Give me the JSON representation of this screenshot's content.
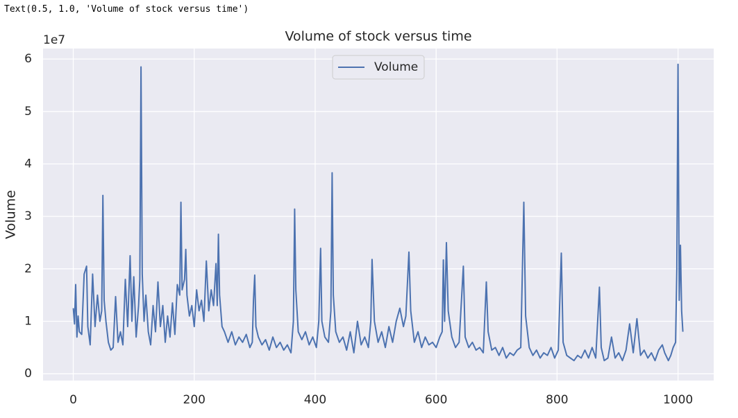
{
  "output_text": "Text(0.5, 1.0, 'Volume of stock versus time')",
  "chart_data": {
    "type": "line",
    "title": "Volume of stock versus time",
    "ylabel": "Volume",
    "y_offset_label": "1e7",
    "xlim": [
      -50,
      1059
    ],
    "ylim": [
      -0.13,
      6.2
    ],
    "xticks": [
      0,
      200,
      400,
      600,
      800,
      1000
    ],
    "yticks": [
      0,
      1,
      2,
      3,
      4,
      5,
      6
    ],
    "grid": true,
    "legend": "upper center",
    "x": [
      0,
      2,
      4,
      6,
      8,
      10,
      14,
      18,
      22,
      24,
      28,
      32,
      36,
      40,
      44,
      47,
      49,
      51,
      54,
      58,
      62,
      66,
      70,
      74,
      78,
      82,
      86,
      90,
      94,
      97,
      100,
      104,
      108,
      110,
      112,
      114,
      117,
      120,
      124,
      128,
      132,
      136,
      140,
      144,
      148,
      152,
      156,
      160,
      164,
      168,
      172,
      176,
      178,
      180,
      184,
      186,
      188,
      192,
      196,
      200,
      204,
      208,
      212,
      216,
      220,
      224,
      228,
      232,
      236,
      238,
      240,
      242,
      246,
      250,
      256,
      262,
      268,
      274,
      280,
      286,
      292,
      296,
      298,
      300,
      302,
      306,
      312,
      318,
      324,
      330,
      336,
      342,
      348,
      354,
      360,
      364,
      366,
      368,
      372,
      378,
      384,
      390,
      396,
      402,
      406,
      409,
      411,
      416,
      422,
      426,
      428,
      430,
      434,
      440,
      446,
      452,
      458,
      464,
      470,
      476,
      482,
      488,
      492,
      494,
      498,
      504,
      510,
      516,
      522,
      528,
      534,
      540,
      546,
      550,
      555,
      558,
      564,
      570,
      576,
      582,
      588,
      594,
      600,
      606,
      610,
      612,
      614,
      617,
      620,
      626,
      632,
      638,
      645,
      648,
      654,
      660,
      666,
      672,
      678,
      683,
      686,
      692,
      698,
      704,
      710,
      716,
      722,
      728,
      734,
      740,
      745,
      748,
      754,
      760,
      766,
      772,
      778,
      784,
      790,
      796,
      802,
      807,
      810,
      816,
      822,
      828,
      834,
      840,
      846,
      852,
      858,
      864,
      870,
      873,
      878,
      884,
      890,
      896,
      902,
      908,
      914,
      920,
      926,
      932,
      938,
      944,
      950,
      956,
      962,
      968,
      974,
      978,
      984,
      988,
      992,
      996,
      998,
      1000,
      1002,
      1004,
      1006,
      1008
    ],
    "series": [
      {
        "name": "Volume",
        "color": "#4c72b0",
        "values": [
          1.25,
          0.95,
          1.7,
          0.7,
          1.1,
          0.8,
          0.75,
          1.9,
          2.05,
          0.9,
          0.55,
          1.9,
          0.9,
          1.5,
          1.0,
          1.2,
          3.4,
          1.4,
          1.0,
          0.6,
          0.45,
          0.5,
          1.47,
          0.6,
          0.8,
          0.55,
          1.8,
          0.9,
          2.25,
          1.0,
          1.85,
          0.7,
          1.3,
          1.8,
          5.85,
          1.9,
          1.0,
          1.5,
          0.8,
          0.55,
          1.3,
          0.8,
          1.75,
          0.9,
          1.3,
          0.6,
          1.1,
          0.7,
          1.35,
          0.75,
          1.7,
          1.5,
          3.27,
          1.6,
          1.8,
          2.37,
          1.5,
          1.1,
          1.3,
          0.9,
          1.6,
          1.2,
          1.4,
          1.0,
          2.15,
          1.2,
          1.6,
          1.3,
          2.1,
          1.3,
          2.66,
          1.5,
          0.9,
          0.8,
          0.6,
          0.8,
          0.55,
          0.7,
          0.6,
          0.75,
          0.5,
          0.6,
          1.4,
          1.88,
          0.9,
          0.7,
          0.55,
          0.65,
          0.45,
          0.7,
          0.5,
          0.6,
          0.45,
          0.55,
          0.4,
          1.0,
          3.14,
          1.6,
          0.8,
          0.65,
          0.8,
          0.55,
          0.7,
          0.5,
          1.0,
          2.39,
          1.0,
          0.7,
          0.6,
          1.2,
          3.83,
          1.5,
          0.8,
          0.6,
          0.7,
          0.45,
          0.8,
          0.4,
          1.0,
          0.55,
          0.7,
          0.5,
          1.0,
          2.18,
          1.0,
          0.6,
          0.8,
          0.5,
          0.9,
          0.6,
          1.0,
          1.25,
          0.9,
          1.1,
          2.32,
          1.2,
          0.6,
          0.8,
          0.5,
          0.7,
          0.55,
          0.6,
          0.5,
          0.7,
          0.8,
          2.17,
          1.0,
          2.5,
          1.2,
          0.7,
          0.5,
          0.6,
          2.05,
          0.7,
          0.5,
          0.6,
          0.45,
          0.5,
          0.4,
          1.75,
          0.8,
          0.45,
          0.5,
          0.35,
          0.5,
          0.3,
          0.4,
          0.35,
          0.45,
          0.5,
          3.27,
          1.1,
          0.5,
          0.35,
          0.45,
          0.3,
          0.4,
          0.35,
          0.5,
          0.3,
          0.45,
          2.3,
          0.6,
          0.35,
          0.3,
          0.25,
          0.35,
          0.3,
          0.45,
          0.3,
          0.5,
          0.3,
          1.65,
          0.5,
          0.25,
          0.3,
          0.7,
          0.3,
          0.4,
          0.25,
          0.45,
          0.95,
          0.4,
          1.05,
          0.35,
          0.45,
          0.3,
          0.4,
          0.25,
          0.45,
          0.55,
          0.4,
          0.25,
          0.35,
          0.5,
          0.6,
          2.0,
          5.9,
          1.4,
          2.45,
          1.2,
          0.8
        ]
      }
    ]
  }
}
